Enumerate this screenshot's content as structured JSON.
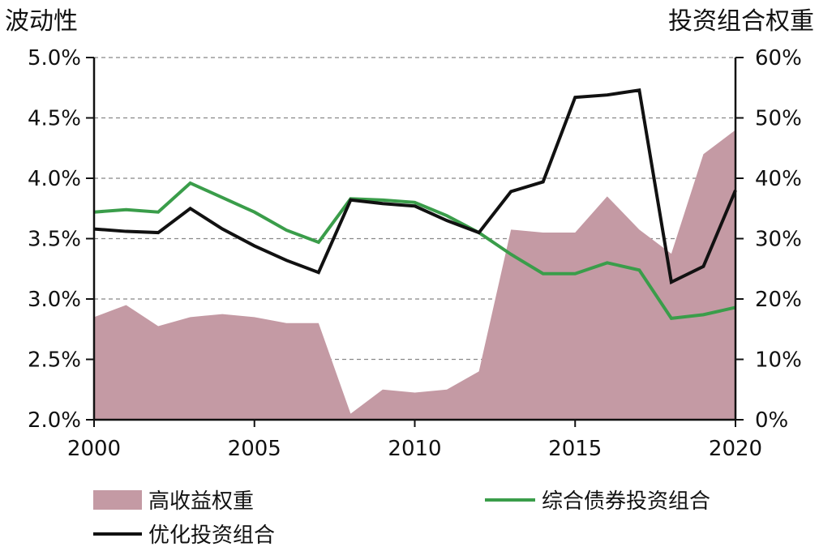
{
  "chart_data": {
    "type": "line",
    "left_axis_title": "波动性",
    "right_axis_title": "投资组合权重",
    "x": [
      2000,
      2001,
      2002,
      2003,
      2004,
      2005,
      2006,
      2007,
      2008,
      2009,
      2010,
      2011,
      2012,
      2013,
      2014,
      2015,
      2016,
      2017,
      2018,
      2019,
      2020
    ],
    "x_ticks": [
      "2000",
      "2005",
      "2010",
      "2015",
      "2020"
    ],
    "x_tick_values": [
      2000,
      2005,
      2010,
      2015,
      2020
    ],
    "xlim": [
      2000,
      2020
    ],
    "y_left_ticks": [
      "2.0%",
      "2.5%",
      "3.0%",
      "3.5%",
      "4.0%",
      "4.5%",
      "5.0%"
    ],
    "y_left_tick_values": [
      2.0,
      2.5,
      3.0,
      3.5,
      4.0,
      4.5,
      5.0
    ],
    "ylim_left": [
      2.0,
      5.0
    ],
    "y_right_ticks": [
      "0%",
      "10%",
      "20%",
      "30%",
      "40%",
      "50%",
      "60%"
    ],
    "y_right_tick_values": [
      0,
      10,
      20,
      30,
      40,
      50,
      60
    ],
    "ylim_right": [
      0,
      60
    ],
    "grid": "horizontal dashed",
    "legend_position": "bottom",
    "series": [
      {
        "name": "高收益权重",
        "kind": "area",
        "axis": "right",
        "color": "#c49aa4",
        "values": [
          17,
          19,
          15.5,
          17,
          17.5,
          17,
          16,
          16,
          1,
          5,
          4.5,
          5,
          8,
          31.5,
          31,
          31,
          37,
          31.5,
          27.5,
          44,
          48
        ]
      },
      {
        "name": "综合债券投资组合",
        "kind": "line",
        "axis": "left",
        "color": "#3a9d4a",
        "values": [
          3.72,
          3.74,
          3.72,
          3.96,
          3.84,
          3.72,
          3.57,
          3.47,
          3.83,
          3.82,
          3.8,
          3.69,
          3.55,
          3.37,
          3.21,
          3.21,
          3.3,
          3.24,
          2.84,
          2.87,
          2.93
        ]
      },
      {
        "name": "优化投资组合",
        "kind": "line",
        "axis": "left",
        "color": "#111111",
        "values": [
          3.58,
          3.56,
          3.55,
          3.75,
          3.58,
          3.44,
          3.32,
          3.22,
          3.82,
          3.79,
          3.77,
          3.65,
          3.55,
          3.89,
          3.97,
          4.67,
          4.69,
          4.73,
          3.14,
          3.27,
          3.9
        ]
      }
    ]
  },
  "colors": {
    "axis": "#111111",
    "grid": "#888888",
    "text": "#111111"
  }
}
